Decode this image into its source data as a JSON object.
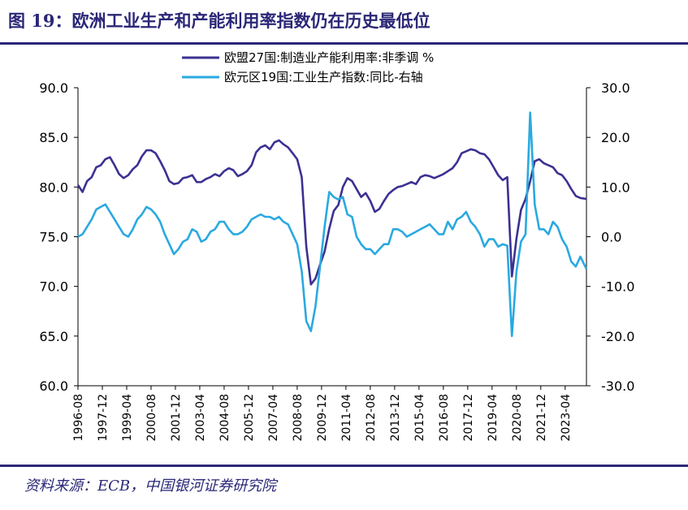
{
  "figure": {
    "title": "图 19：欧洲工业生产和产能利用率指数仍在历史最低位",
    "source": "资料来源：ECB，中国银河证券研究院"
  },
  "chart_data": {
    "type": "line",
    "legend_position": "top-center",
    "grid": false,
    "x_start": "1996-08",
    "x_end": "2024-06",
    "x_tick_labels": [
      "1996-08",
      "1997-12",
      "1999-04",
      "2000-08",
      "2001-12",
      "2003-04",
      "2004-08",
      "2005-12",
      "2007-04",
      "2008-08",
      "2009-12",
      "2011-04",
      "2012-08",
      "2013-12",
      "2015-04",
      "2016-08",
      "2017-12",
      "2019-04",
      "2020-08",
      "2021-12",
      "2023-04"
    ],
    "y_left": {
      "min": 60,
      "max": 90,
      "ticks": [
        "60.0",
        "65.0",
        "70.0",
        "75.0",
        "80.0",
        "85.0",
        "90.0"
      ]
    },
    "y_right": {
      "min": -30,
      "max": 30,
      "ticks": [
        "-30.0",
        "-20.0",
        "-10.0",
        "0.0",
        "10.0",
        "20.0",
        "30.0"
      ]
    },
    "series": [
      {
        "name": "欧盟27国:制造业产能利用率:非季调 %",
        "axis": "left",
        "color": "#3b3192",
        "points": [
          [
            "1996-08",
            80.2
          ],
          [
            "1996-11",
            79.5
          ],
          [
            "1997-02",
            80.6
          ],
          [
            "1997-05",
            81.0
          ],
          [
            "1997-08",
            82.0
          ],
          [
            "1997-11",
            82.2
          ],
          [
            "1998-02",
            82.8
          ],
          [
            "1998-05",
            83.0
          ],
          [
            "1998-08",
            82.2
          ],
          [
            "1998-11",
            81.3
          ],
          [
            "1999-02",
            80.9
          ],
          [
            "1999-05",
            81.2
          ],
          [
            "1999-08",
            81.8
          ],
          [
            "1999-11",
            82.2
          ],
          [
            "2000-02",
            83.1
          ],
          [
            "2000-05",
            83.7
          ],
          [
            "2000-08",
            83.7
          ],
          [
            "2000-11",
            83.4
          ],
          [
            "2001-02",
            82.6
          ],
          [
            "2001-05",
            81.7
          ],
          [
            "2001-08",
            80.6
          ],
          [
            "2001-11",
            80.3
          ],
          [
            "2002-02",
            80.4
          ],
          [
            "2002-05",
            80.9
          ],
          [
            "2002-08",
            81.0
          ],
          [
            "2002-11",
            81.2
          ],
          [
            "2003-02",
            80.5
          ],
          [
            "2003-05",
            80.5
          ],
          [
            "2003-08",
            80.8
          ],
          [
            "2003-11",
            81.0
          ],
          [
            "2004-02",
            81.3
          ],
          [
            "2004-05",
            81.1
          ],
          [
            "2004-08",
            81.6
          ],
          [
            "2004-11",
            81.9
          ],
          [
            "2005-02",
            81.7
          ],
          [
            "2005-05",
            81.1
          ],
          [
            "2005-08",
            81.3
          ],
          [
            "2005-11",
            81.6
          ],
          [
            "2006-02",
            82.2
          ],
          [
            "2006-05",
            83.5
          ],
          [
            "2006-08",
            84.0
          ],
          [
            "2006-11",
            84.2
          ],
          [
            "2007-02",
            83.8
          ],
          [
            "2007-05",
            84.5
          ],
          [
            "2007-08",
            84.7
          ],
          [
            "2007-11",
            84.3
          ],
          [
            "2008-02",
            84.0
          ],
          [
            "2008-05",
            83.4
          ],
          [
            "2008-08",
            82.8
          ],
          [
            "2008-11",
            81.0
          ],
          [
            "2009-02",
            74.0
          ],
          [
            "2009-05",
            70.2
          ],
          [
            "2009-08",
            70.8
          ],
          [
            "2009-11",
            72.2
          ],
          [
            "2010-02",
            73.5
          ],
          [
            "2010-05",
            75.8
          ],
          [
            "2010-08",
            77.6
          ],
          [
            "2010-11",
            78.2
          ],
          [
            "2011-02",
            80.0
          ],
          [
            "2011-05",
            80.9
          ],
          [
            "2011-08",
            80.6
          ],
          [
            "2011-11",
            79.8
          ],
          [
            "2012-02",
            79.0
          ],
          [
            "2012-05",
            79.4
          ],
          [
            "2012-08",
            78.6
          ],
          [
            "2012-11",
            77.5
          ],
          [
            "2013-02",
            77.8
          ],
          [
            "2013-05",
            78.6
          ],
          [
            "2013-08",
            79.3
          ],
          [
            "2013-11",
            79.7
          ],
          [
            "2014-02",
            80.0
          ],
          [
            "2014-05",
            80.1
          ],
          [
            "2014-08",
            80.3
          ],
          [
            "2014-11",
            80.5
          ],
          [
            "2015-02",
            80.3
          ],
          [
            "2015-05",
            81.0
          ],
          [
            "2015-08",
            81.2
          ],
          [
            "2015-11",
            81.1
          ],
          [
            "2016-02",
            80.9
          ],
          [
            "2016-05",
            81.1
          ],
          [
            "2016-08",
            81.3
          ],
          [
            "2016-11",
            81.6
          ],
          [
            "2017-02",
            81.9
          ],
          [
            "2017-05",
            82.5
          ],
          [
            "2017-08",
            83.4
          ],
          [
            "2017-11",
            83.6
          ],
          [
            "2018-02",
            83.8
          ],
          [
            "2018-05",
            83.7
          ],
          [
            "2018-08",
            83.4
          ],
          [
            "2018-11",
            83.3
          ],
          [
            "2019-02",
            82.8
          ],
          [
            "2019-05",
            82.0
          ],
          [
            "2019-08",
            81.2
          ],
          [
            "2019-11",
            80.7
          ],
          [
            "2020-02",
            81.0
          ],
          [
            "2020-05",
            71.0
          ],
          [
            "2020-08",
            74.8
          ],
          [
            "2020-11",
            77.7
          ],
          [
            "2021-02",
            78.8
          ],
          [
            "2021-05",
            80.6
          ],
          [
            "2021-08",
            82.6
          ],
          [
            "2021-11",
            82.8
          ],
          [
            "2022-02",
            82.4
          ],
          [
            "2022-05",
            82.2
          ],
          [
            "2022-08",
            82.0
          ],
          [
            "2022-11",
            81.4
          ],
          [
            "2023-02",
            81.2
          ],
          [
            "2023-05",
            80.6
          ],
          [
            "2023-08",
            79.8
          ],
          [
            "2023-11",
            79.1
          ],
          [
            "2024-02",
            78.9
          ],
          [
            "2024-06",
            78.8
          ]
        ]
      },
      {
        "name": "欧元区19国:工业生产指数:同比-右轴",
        "axis": "right",
        "color": "#2aa9e0",
        "points": [
          [
            "1996-08",
            0.0
          ],
          [
            "1996-11",
            0.5
          ],
          [
            "1997-02",
            2.0
          ],
          [
            "1997-05",
            3.5
          ],
          [
            "1997-08",
            5.5
          ],
          [
            "1997-11",
            6.0
          ],
          [
            "1998-02",
            6.5
          ],
          [
            "1998-05",
            5.0
          ],
          [
            "1998-08",
            3.5
          ],
          [
            "1998-11",
            2.0
          ],
          [
            "1999-02",
            0.5
          ],
          [
            "1999-05",
            0.0
          ],
          [
            "1999-08",
            1.5
          ],
          [
            "1999-11",
            3.5
          ],
          [
            "2000-02",
            4.5
          ],
          [
            "2000-05",
            6.0
          ],
          [
            "2000-08",
            5.5
          ],
          [
            "2000-11",
            4.5
          ],
          [
            "2001-02",
            3.0
          ],
          [
            "2001-05",
            0.5
          ],
          [
            "2001-08",
            -1.5
          ],
          [
            "2001-11",
            -3.5
          ],
          [
            "2002-02",
            -2.5
          ],
          [
            "2002-05",
            -1.0
          ],
          [
            "2002-08",
            -0.5
          ],
          [
            "2002-11",
            1.5
          ],
          [
            "2003-02",
            1.0
          ],
          [
            "2003-05",
            -1.0
          ],
          [
            "2003-08",
            -0.5
          ],
          [
            "2003-11",
            1.0
          ],
          [
            "2004-02",
            1.5
          ],
          [
            "2004-05",
            3.0
          ],
          [
            "2004-08",
            3.0
          ],
          [
            "2004-11",
            1.5
          ],
          [
            "2005-02",
            0.5
          ],
          [
            "2005-05",
            0.5
          ],
          [
            "2005-08",
            1.0
          ],
          [
            "2005-11",
            2.0
          ],
          [
            "2006-02",
            3.5
          ],
          [
            "2006-05",
            4.0
          ],
          [
            "2006-08",
            4.5
          ],
          [
            "2006-11",
            4.0
          ],
          [
            "2007-02",
            4.0
          ],
          [
            "2007-05",
            3.5
          ],
          [
            "2007-08",
            4.0
          ],
          [
            "2007-11",
            3.0
          ],
          [
            "2008-02",
            2.5
          ],
          [
            "2008-05",
            0.5
          ],
          [
            "2008-08",
            -1.5
          ],
          [
            "2008-11",
            -7.0
          ],
          [
            "2009-02",
            -17.0
          ],
          [
            "2009-05",
            -19.0
          ],
          [
            "2009-08",
            -14.0
          ],
          [
            "2009-11",
            -6.0
          ],
          [
            "2010-02",
            2.0
          ],
          [
            "2010-05",
            9.0
          ],
          [
            "2010-08",
            8.0
          ],
          [
            "2010-11",
            7.5
          ],
          [
            "2011-02",
            8.0
          ],
          [
            "2011-05",
            4.5
          ],
          [
            "2011-08",
            4.0
          ],
          [
            "2011-11",
            0.0
          ],
          [
            "2012-02",
            -1.5
          ],
          [
            "2012-05",
            -2.5
          ],
          [
            "2012-08",
            -2.5
          ],
          [
            "2012-11",
            -3.5
          ],
          [
            "2013-02",
            -2.5
          ],
          [
            "2013-05",
            -1.5
          ],
          [
            "2013-08",
            -1.5
          ],
          [
            "2013-11",
            1.5
          ],
          [
            "2014-02",
            1.5
          ],
          [
            "2014-05",
            1.0
          ],
          [
            "2014-08",
            0.0
          ],
          [
            "2014-11",
            0.5
          ],
          [
            "2015-02",
            1.0
          ],
          [
            "2015-05",
            1.5
          ],
          [
            "2015-08",
            2.0
          ],
          [
            "2015-11",
            2.5
          ],
          [
            "2016-02",
            1.5
          ],
          [
            "2016-05",
            0.5
          ],
          [
            "2016-08",
            0.5
          ],
          [
            "2016-11",
            3.0
          ],
          [
            "2017-02",
            1.5
          ],
          [
            "2017-05",
            3.5
          ],
          [
            "2017-08",
            4.0
          ],
          [
            "2017-11",
            5.0
          ],
          [
            "2018-02",
            3.0
          ],
          [
            "2018-05",
            2.0
          ],
          [
            "2018-08",
            0.5
          ],
          [
            "2018-11",
            -2.0
          ],
          [
            "2019-02",
            -0.5
          ],
          [
            "2019-05",
            -0.5
          ],
          [
            "2019-08",
            -2.0
          ],
          [
            "2019-11",
            -1.5
          ],
          [
            "2020-02",
            -1.8
          ],
          [
            "2020-05",
            -20.0
          ],
          [
            "2020-08",
            -7.0
          ],
          [
            "2020-11",
            -1.0
          ],
          [
            "2021-02",
            0.5
          ],
          [
            "2021-05",
            25.0
          ],
          [
            "2021-08",
            6.5
          ],
          [
            "2021-11",
            1.5
          ],
          [
            "2022-02",
            1.5
          ],
          [
            "2022-05",
            0.5
          ],
          [
            "2022-08",
            3.0
          ],
          [
            "2022-11",
            2.0
          ],
          [
            "2023-02",
            -0.5
          ],
          [
            "2023-05",
            -2.0
          ],
          [
            "2023-08",
            -5.0
          ],
          [
            "2023-11",
            -6.0
          ],
          [
            "2024-02",
            -4.0
          ],
          [
            "2024-06",
            -6.5
          ]
        ]
      }
    ]
  }
}
